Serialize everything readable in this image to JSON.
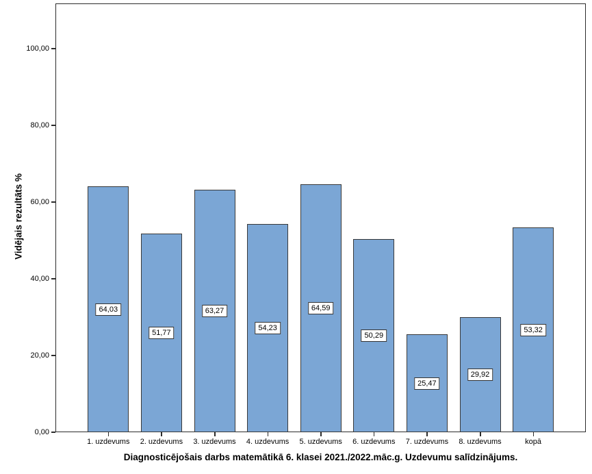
{
  "chart_data": {
    "type": "bar",
    "title": "Diagnosticējošais darbs matemātikā 6. klasei 2021./2022.māc.g. Uzdevumu salīdzinājums.",
    "ylabel": "Vidējais rezultāts %",
    "xlabel": "",
    "categories": [
      "1. uzdevums",
      "2. uzdevums",
      "3. uzdevums",
      "4. uzdevums",
      "5. uzdevums",
      "6. uzdevums",
      "7. uzdevums",
      "8. uzdevums",
      "kopā"
    ],
    "values": [
      64.03,
      51.77,
      63.27,
      54.23,
      64.59,
      50.29,
      25.47,
      29.92,
      53.32
    ],
    "value_labels": [
      "64,03",
      "51,77",
      "63,27",
      "54,23",
      "64,59",
      "50,29",
      "25,47",
      "29,92",
      "53,32"
    ],
    "yticks": [
      0,
      20,
      40,
      60,
      80,
      100
    ],
    "ytick_labels": [
      "0,00",
      "20,00",
      "40,00",
      "60,00",
      "80,00",
      "100,00"
    ],
    "ylim": [
      0,
      111.8
    ],
    "grid": false,
    "legend_position": "none",
    "bar_color": "#7BA6D5",
    "bar_border_color": "#383838",
    "frame_color": "#2b2b2b",
    "label_box_background": "#ffffff",
    "label_box_border": "#333333"
  }
}
